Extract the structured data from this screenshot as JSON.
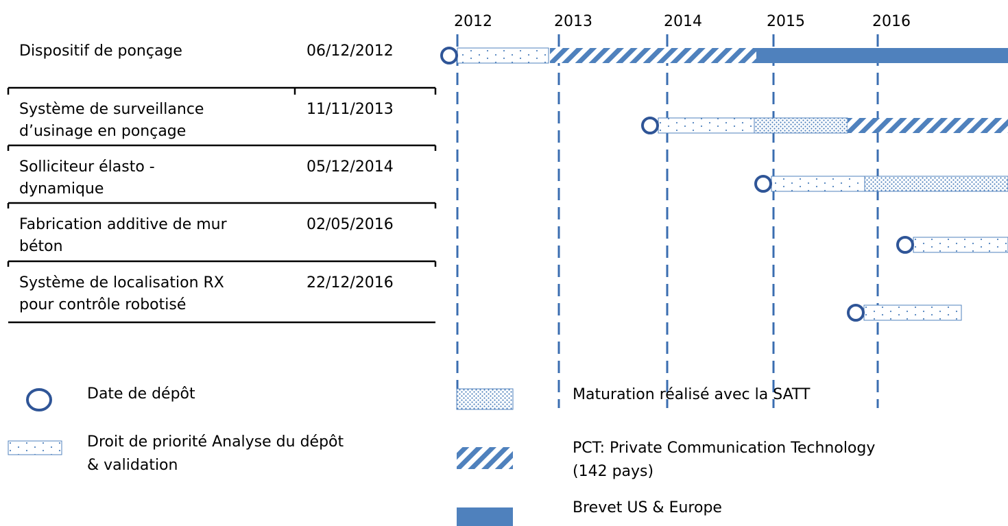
{
  "years": [
    "2012",
    "2013",
    "2014",
    "2015",
    "2016"
  ],
  "rows": [
    {
      "name": [
        "Dispositif de ponçage"
      ],
      "date": "06/12/2012"
    },
    {
      "name": [
        "Système de surveillance",
        "d’usinage en ponçage"
      ],
      "date": "11/11/2013"
    },
    {
      "name": [
        "Solliciteur élasto -",
        "dynamique"
      ],
      "date": "05/12/2014"
    },
    {
      "name": [
        "Fabrication additive de mur",
        "béton"
      ],
      "date": "02/05/2016"
    },
    {
      "name": [
        "Système de localisation RX",
        "pour contrôle robotisé"
      ],
      "date": "22/12/2016"
    }
  ],
  "legend": {
    "filing": [
      "Date de   dépôt"
    ],
    "priority": [
      "Droit de priorité Analyse du dépôt",
      "& validation"
    ],
    "maturation": [
      "Maturation réalisé avec la SATT"
    ],
    "pct": [
      "PCT: Private Communication Technology",
      "(142 pays)"
    ],
    "patent": [
      "Brevet US & Europe"
    ]
  }
}
